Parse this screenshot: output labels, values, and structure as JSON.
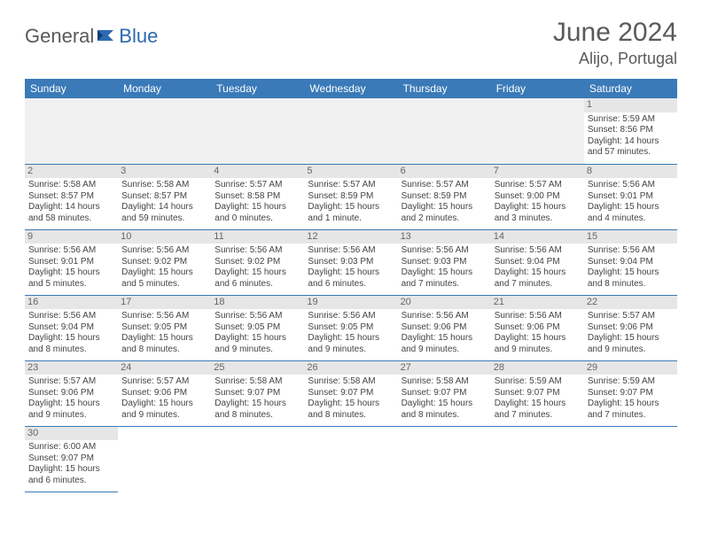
{
  "logo": {
    "general": "General",
    "blue": "Blue"
  },
  "header": {
    "title": "June 2024",
    "location": "Alijo, Portugal"
  },
  "colors": {
    "header_bg": "#3a7ab8",
    "header_text": "#ffffff",
    "row_border": "#3a7ab8",
    "daynum_bg": "#e6e6e6",
    "text": "#444444",
    "title_text": "#5a5a5a",
    "logo_blue": "#2d6ab0"
  },
  "weekdays": [
    "Sunday",
    "Monday",
    "Tuesday",
    "Wednesday",
    "Thursday",
    "Friday",
    "Saturday"
  ],
  "weeks": [
    [
      null,
      null,
      null,
      null,
      null,
      null,
      {
        "n": "1",
        "sr": "Sunrise: 5:59 AM",
        "ss": "Sunset: 8:56 PM",
        "dl": "Daylight: 14 hours and 57 minutes."
      }
    ],
    [
      {
        "n": "2",
        "sr": "Sunrise: 5:58 AM",
        "ss": "Sunset: 8:57 PM",
        "dl": "Daylight: 14 hours and 58 minutes."
      },
      {
        "n": "3",
        "sr": "Sunrise: 5:58 AM",
        "ss": "Sunset: 8:57 PM",
        "dl": "Daylight: 14 hours and 59 minutes."
      },
      {
        "n": "4",
        "sr": "Sunrise: 5:57 AM",
        "ss": "Sunset: 8:58 PM",
        "dl": "Daylight: 15 hours and 0 minutes."
      },
      {
        "n": "5",
        "sr": "Sunrise: 5:57 AM",
        "ss": "Sunset: 8:59 PM",
        "dl": "Daylight: 15 hours and 1 minute."
      },
      {
        "n": "6",
        "sr": "Sunrise: 5:57 AM",
        "ss": "Sunset: 8:59 PM",
        "dl": "Daylight: 15 hours and 2 minutes."
      },
      {
        "n": "7",
        "sr": "Sunrise: 5:57 AM",
        "ss": "Sunset: 9:00 PM",
        "dl": "Daylight: 15 hours and 3 minutes."
      },
      {
        "n": "8",
        "sr": "Sunrise: 5:56 AM",
        "ss": "Sunset: 9:01 PM",
        "dl": "Daylight: 15 hours and 4 minutes."
      }
    ],
    [
      {
        "n": "9",
        "sr": "Sunrise: 5:56 AM",
        "ss": "Sunset: 9:01 PM",
        "dl": "Daylight: 15 hours and 5 minutes."
      },
      {
        "n": "10",
        "sr": "Sunrise: 5:56 AM",
        "ss": "Sunset: 9:02 PM",
        "dl": "Daylight: 15 hours and 5 minutes."
      },
      {
        "n": "11",
        "sr": "Sunrise: 5:56 AM",
        "ss": "Sunset: 9:02 PM",
        "dl": "Daylight: 15 hours and 6 minutes."
      },
      {
        "n": "12",
        "sr": "Sunrise: 5:56 AM",
        "ss": "Sunset: 9:03 PM",
        "dl": "Daylight: 15 hours and 6 minutes."
      },
      {
        "n": "13",
        "sr": "Sunrise: 5:56 AM",
        "ss": "Sunset: 9:03 PM",
        "dl": "Daylight: 15 hours and 7 minutes."
      },
      {
        "n": "14",
        "sr": "Sunrise: 5:56 AM",
        "ss": "Sunset: 9:04 PM",
        "dl": "Daylight: 15 hours and 7 minutes."
      },
      {
        "n": "15",
        "sr": "Sunrise: 5:56 AM",
        "ss": "Sunset: 9:04 PM",
        "dl": "Daylight: 15 hours and 8 minutes."
      }
    ],
    [
      {
        "n": "16",
        "sr": "Sunrise: 5:56 AM",
        "ss": "Sunset: 9:04 PM",
        "dl": "Daylight: 15 hours and 8 minutes."
      },
      {
        "n": "17",
        "sr": "Sunrise: 5:56 AM",
        "ss": "Sunset: 9:05 PM",
        "dl": "Daylight: 15 hours and 8 minutes."
      },
      {
        "n": "18",
        "sr": "Sunrise: 5:56 AM",
        "ss": "Sunset: 9:05 PM",
        "dl": "Daylight: 15 hours and 9 minutes."
      },
      {
        "n": "19",
        "sr": "Sunrise: 5:56 AM",
        "ss": "Sunset: 9:05 PM",
        "dl": "Daylight: 15 hours and 9 minutes."
      },
      {
        "n": "20",
        "sr": "Sunrise: 5:56 AM",
        "ss": "Sunset: 9:06 PM",
        "dl": "Daylight: 15 hours and 9 minutes."
      },
      {
        "n": "21",
        "sr": "Sunrise: 5:56 AM",
        "ss": "Sunset: 9:06 PM",
        "dl": "Daylight: 15 hours and 9 minutes."
      },
      {
        "n": "22",
        "sr": "Sunrise: 5:57 AM",
        "ss": "Sunset: 9:06 PM",
        "dl": "Daylight: 15 hours and 9 minutes."
      }
    ],
    [
      {
        "n": "23",
        "sr": "Sunrise: 5:57 AM",
        "ss": "Sunset: 9:06 PM",
        "dl": "Daylight: 15 hours and 9 minutes."
      },
      {
        "n": "24",
        "sr": "Sunrise: 5:57 AM",
        "ss": "Sunset: 9:06 PM",
        "dl": "Daylight: 15 hours and 9 minutes."
      },
      {
        "n": "25",
        "sr": "Sunrise: 5:58 AM",
        "ss": "Sunset: 9:07 PM",
        "dl": "Daylight: 15 hours and 8 minutes."
      },
      {
        "n": "26",
        "sr": "Sunrise: 5:58 AM",
        "ss": "Sunset: 9:07 PM",
        "dl": "Daylight: 15 hours and 8 minutes."
      },
      {
        "n": "27",
        "sr": "Sunrise: 5:58 AM",
        "ss": "Sunset: 9:07 PM",
        "dl": "Daylight: 15 hours and 8 minutes."
      },
      {
        "n": "28",
        "sr": "Sunrise: 5:59 AM",
        "ss": "Sunset: 9:07 PM",
        "dl": "Daylight: 15 hours and 7 minutes."
      },
      {
        "n": "29",
        "sr": "Sunrise: 5:59 AM",
        "ss": "Sunset: 9:07 PM",
        "dl": "Daylight: 15 hours and 7 minutes."
      }
    ],
    [
      {
        "n": "30",
        "sr": "Sunrise: 6:00 AM",
        "ss": "Sunset: 9:07 PM",
        "dl": "Daylight: 15 hours and 6 minutes."
      },
      null,
      null,
      null,
      null,
      null,
      null
    ]
  ]
}
